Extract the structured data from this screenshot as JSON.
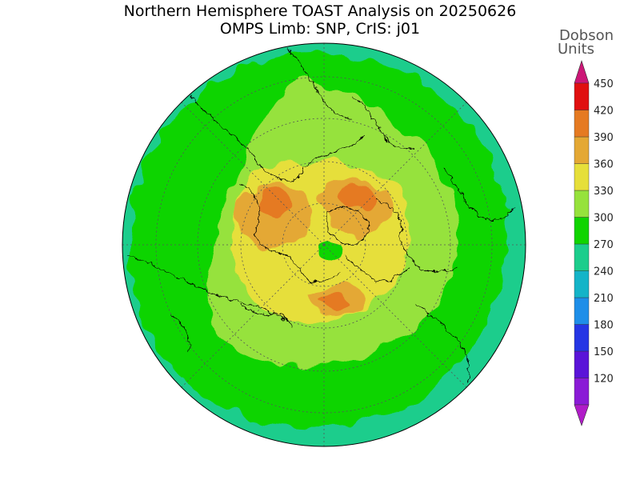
{
  "header": {
    "title_line1": "Northern Hemisphere TOAST Analysis on 20250626",
    "title_line2": "OMPS Limb: SNP, CrIS: j01"
  },
  "colorbar": {
    "unit_line1": "Dobson",
    "unit_line2": "Units",
    "levels": [
      {
        "label": "120",
        "color": "#8a1bd6"
      },
      {
        "label": "150",
        "color": "#5a14d8"
      },
      {
        "label": "180",
        "color": "#2536e4"
      },
      {
        "label": "210",
        "color": "#1e8ee8"
      },
      {
        "label": "240",
        "color": "#14b4c8"
      },
      {
        "label": "270",
        "color": "#1ccd8c"
      },
      {
        "label": "300",
        "color": "#10d400"
      },
      {
        "label": "330",
        "color": "#96e23c"
      },
      {
        "label": "360",
        "color": "#e6df3a"
      },
      {
        "label": "390",
        "color": "#e4a834"
      },
      {
        "label": "420",
        "color": "#e57a22"
      },
      {
        "label": "450",
        "color": "#e01010"
      }
    ],
    "over_color": "#cc1777",
    "under_color": "#b01cc8"
  },
  "map": {
    "projection": "north-polar-stereographic",
    "colors": {
      "outer": "#1ccd8c",
      "band": "#10d400",
      "mid": "#96e23c",
      "high": "#e6df3a",
      "peak": "#e4a834",
      "max": "#e57a22"
    }
  }
}
